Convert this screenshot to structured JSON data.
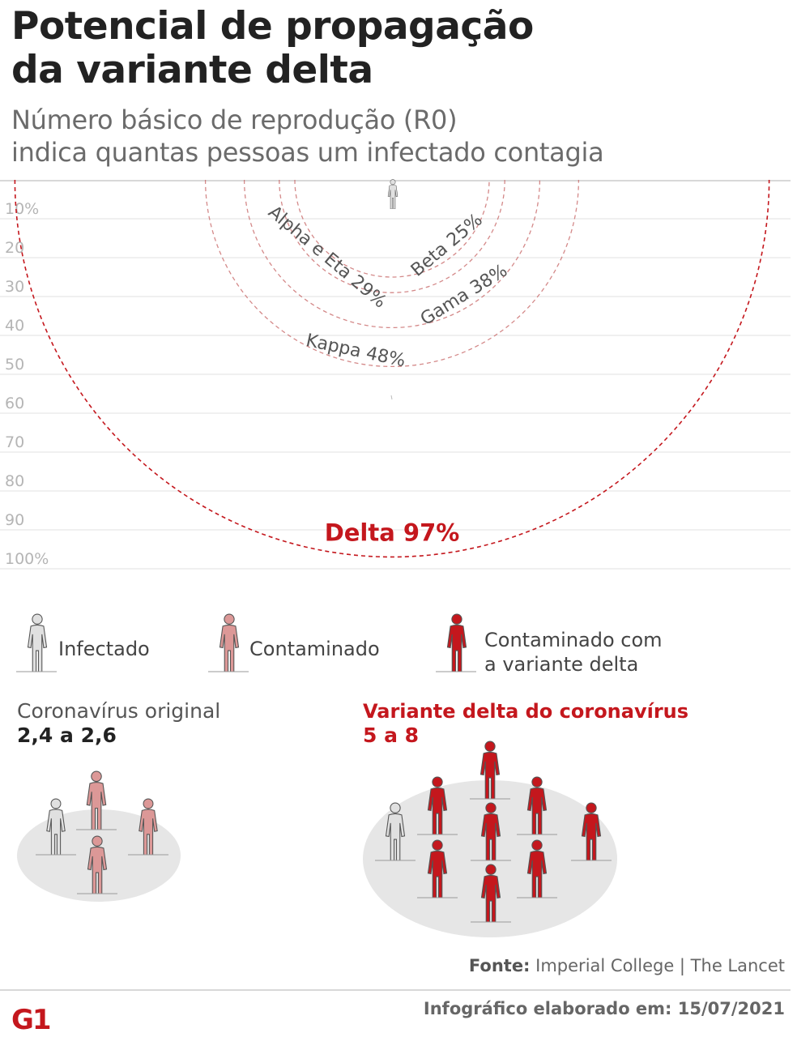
{
  "header": {
    "title_line1": "Potencial de propagação",
    "title_line2": "da variante delta",
    "subtitle_line1": "Número básico de reprodução (R0)",
    "subtitle_line2": "indica quantas pessoas um infectado contagia"
  },
  "chart_data": {
    "type": "radial-comparison",
    "axis_ticks": [
      "10%",
      "20",
      "30",
      "40",
      "50",
      "60",
      "70",
      "80",
      "90",
      "100%"
    ],
    "series": [
      {
        "name": "Beta",
        "label": "Beta 25%",
        "value": 25
      },
      {
        "name": "Alpha e Eta",
        "label": "Alpha e Eta 29%",
        "value": 29
      },
      {
        "name": "Gama",
        "label": "Gama 38%",
        "value": 38
      },
      {
        "name": "Kappa",
        "label": "Kappa 48%",
        "value": 48
      },
      {
        "name": "Delta",
        "label": "Delta 97%",
        "value": 97
      }
    ]
  },
  "legend": {
    "infected": "Infectado",
    "contaminated": "Contaminado",
    "delta_line1": "Contaminado com",
    "delta_line2": "a variante delta"
  },
  "original": {
    "title": "Coronavírus original",
    "value": "2,4 a 2,6"
  },
  "delta": {
    "title": "Variante delta do coronavírus",
    "value": "5 a 8"
  },
  "footer": {
    "source_label": "Fonte:",
    "source_value": "Imperial College | The Lancet",
    "date": "Infográfico elaborado em: 15/07/2021",
    "logo": "G1"
  },
  "colors": {
    "delta": "#c4171d",
    "contaminated": "#dc9897",
    "infected": "#d6d6d6",
    "ring": "#c96b6b",
    "grid": "#e2e2e2"
  }
}
